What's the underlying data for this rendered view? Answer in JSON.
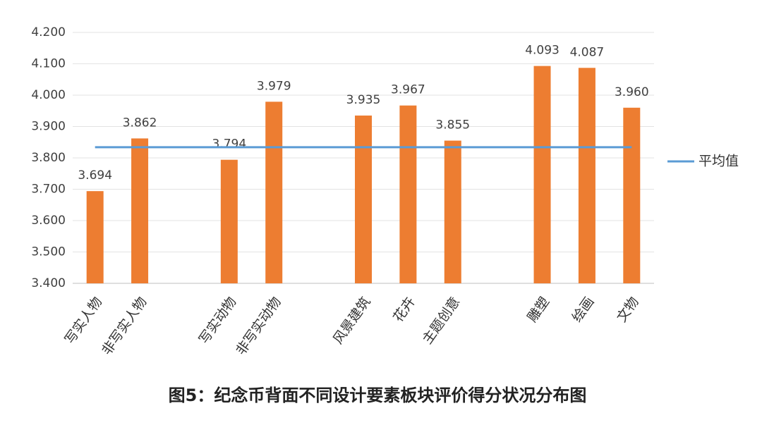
{
  "chart_data": {
    "type": "bar",
    "title": "图5：纪念币背面不同设计要素板块评价得分状况分布图",
    "categories": [
      "写实人物",
      "非写实人物",
      null,
      "写实动物",
      "非写实动物",
      null,
      "风景建筑",
      "花卉",
      "主题创意",
      null,
      "雕塑",
      "绘画",
      "文物"
    ],
    "series": [
      {
        "type": "bar",
        "color": "#ED7D31",
        "values": [
          3.694,
          3.862,
          null,
          3.794,
          3.979,
          null,
          3.935,
          3.967,
          3.855,
          null,
          4.093,
          4.087,
          3.96
        ],
        "value_labels": [
          "3.694",
          "3.862",
          null,
          "3.794",
          "3.979",
          null,
          "3.935",
          "3.967",
          "3.855",
          null,
          "4.093",
          "4.087",
          "3.960"
        ]
      },
      {
        "type": "line",
        "name": "平均值",
        "color": "#5B9BD5",
        "values": [
          3.834,
          3.834,
          3.834,
          3.834,
          3.834,
          3.834,
          3.834,
          3.834,
          3.834,
          3.834,
          3.834,
          3.834,
          3.834
        ]
      }
    ],
    "ylim": [
      3.4,
      4.2
    ],
    "yticks": [
      {
        "value": 3.4,
        "label": "3.400"
      },
      {
        "value": 3.5,
        "label": "3.500"
      },
      {
        "value": 3.6,
        "label": "3.600"
      },
      {
        "value": 3.7,
        "label": "3.700"
      },
      {
        "value": 3.8,
        "label": "3.800"
      },
      {
        "value": 3.9,
        "label": "3.900"
      },
      {
        "value": 4.0,
        "label": "4.000"
      },
      {
        "value": 4.1,
        "label": "4.100"
      },
      {
        "value": 4.2,
        "label": "4.200"
      }
    ],
    "grid": true,
    "legend": "right"
  }
}
